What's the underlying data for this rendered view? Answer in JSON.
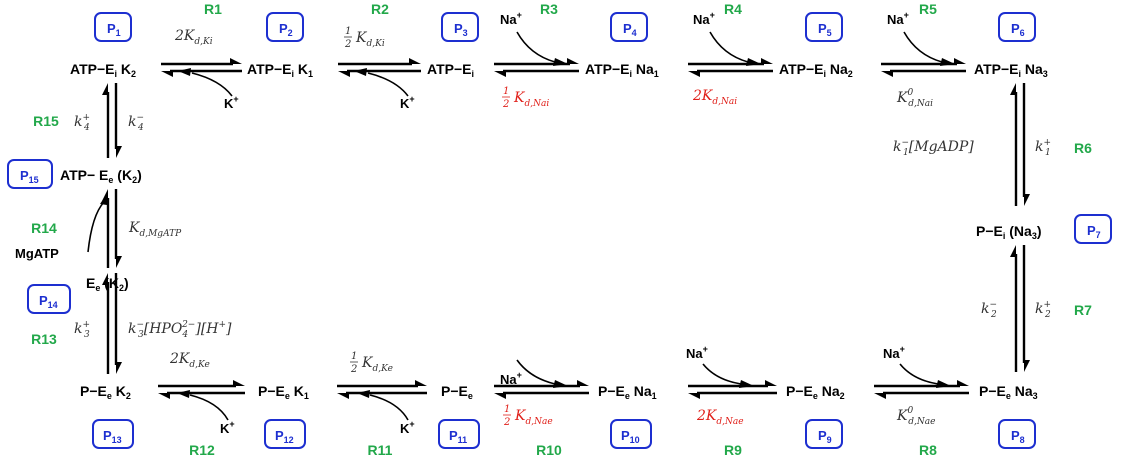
{
  "states": [
    {
      "id": "s1",
      "label": "ATP−E",
      "sub": "i",
      "tail": " K",
      "tailsub": "2"
    },
    {
      "id": "s2",
      "label": "ATP−E",
      "sub": "i",
      "tail": " K",
      "tailsub": "1"
    },
    {
      "id": "s3",
      "label": "ATP−E",
      "sub": "i",
      "tail": "",
      "tailsub": ""
    },
    {
      "id": "s4",
      "label": "ATP−E",
      "sub": "i",
      "tail": " Na",
      "tailsub": "1"
    },
    {
      "id": "s5",
      "label": "ATP−E",
      "sub": "i",
      "tail": " Na",
      "tailsub": "2"
    },
    {
      "id": "s6",
      "label": "ATP−E",
      "sub": "i",
      "tail": " Na",
      "tailsub": "3"
    },
    {
      "id": "s7",
      "label": "P−E",
      "sub": "i",
      "tail": " (Na",
      "tailsub": "3",
      "close": ")"
    },
    {
      "id": "s8",
      "label": "P−E",
      "sub": "e",
      "tail": " Na",
      "tailsub": "3"
    },
    {
      "id": "s9",
      "label": "P−E",
      "sub": "e",
      "tail": " Na",
      "tailsub": "2"
    },
    {
      "id": "s10",
      "label": "P−E",
      "sub": "e",
      "tail": " Na",
      "tailsub": "1"
    },
    {
      "id": "s11",
      "label": "P−E",
      "sub": "e",
      "tail": "",
      "tailsub": ""
    },
    {
      "id": "s12",
      "label": "P−E",
      "sub": "e",
      "tail": " K",
      "tailsub": "1"
    },
    {
      "id": "s13",
      "label": "P−E",
      "sub": "e",
      "tail": " K",
      "tailsub": "2"
    },
    {
      "id": "s14",
      "label": "E",
      "sub": "e",
      "tail": " (K",
      "tailsub": "2",
      "close": ")"
    },
    {
      "id": "s15",
      "label": "ATP− E",
      "sub": "e",
      "tail": " (K",
      "tailsub": "2",
      "close": ")"
    }
  ],
  "populations": [
    {
      "label": "P",
      "sub": "1"
    },
    {
      "label": "P",
      "sub": "2"
    },
    {
      "label": "P",
      "sub": "3"
    },
    {
      "label": "P",
      "sub": "4"
    },
    {
      "label": "P",
      "sub": "5"
    },
    {
      "label": "P",
      "sub": "6"
    },
    {
      "label": "P",
      "sub": "7"
    },
    {
      "label": "P",
      "sub": "8"
    },
    {
      "label": "P",
      "sub": "9"
    },
    {
      "label": "P",
      "sub": "10"
    },
    {
      "label": "P",
      "sub": "11"
    },
    {
      "label": "P",
      "sub": "12"
    },
    {
      "label": "P",
      "sub": "13"
    },
    {
      "label": "P",
      "sub": "14"
    },
    {
      "label": "P",
      "sub": "15"
    }
  ],
  "reactions": [
    "R1",
    "R2",
    "R3",
    "R4",
    "R5",
    "R6",
    "R7",
    "R8",
    "R9",
    "R10",
    "R11",
    "R12",
    "R13",
    "R14",
    "R15"
  ],
  "ions": {
    "na": "Na",
    "k": "K",
    "plus": "+",
    "mgatp": "MgATP"
  },
  "rates": {
    "r1": "2K",
    "r1s": "d,Ki",
    "r2f": "1",
    "r2d": "2",
    "r2": "K",
    "r2s": "d,Ki",
    "r3f": "1",
    "r3d": "2",
    "r3": "K",
    "r3s": "d,Nai",
    "r4": "2K",
    "r4s": "d,Nai",
    "r5": "K",
    "r5sup": "0",
    "r5s": "d,Nai",
    "r6l": "k",
    "r6lsup": "−",
    "r6lsub": "1",
    "r6lt": "[MgADP]",
    "r6r": "k",
    "r6rsup": "+",
    "r6rsub": "1",
    "r7l": "k",
    "r7lsup": "−",
    "r7lsub": "2",
    "r7r": "k",
    "r7rsup": "+",
    "r7rsub": "2",
    "r8": "K",
    "r8sup": "0",
    "r8s": "d,Nae",
    "r9": "2K",
    "r9s": "d,Nae",
    "r10f": "1",
    "r10d": "2",
    "r10": "K",
    "r10s": "d,Nae",
    "r11f": "1",
    "r11d": "2",
    "r11": "K",
    "r11s": "d,Ke",
    "r12": "2K",
    "r12s": "d,Ke",
    "r13l": "k",
    "r13lsup": "+",
    "r13lsub": "3",
    "r13r": "k",
    "r13rsup": "−",
    "r13rsub": "3",
    "r13rt1": "[HPO",
    "r13rsub2": "4",
    "r13rsup2": "2−",
    "r13rt2": "][H",
    "r13rsup3": "+",
    "r13rt3": "]",
    "r14": "K",
    "r14s": "d,MgATP",
    "r15l": "k",
    "r15lsup": "+",
    "r15lsub": "4",
    "r15r": "k",
    "r15rsup": "−",
    "r15rsub": "4"
  },
  "colors": {
    "reaction": "#22a84a",
    "population": "#1d2fd0",
    "highlight": "#e0201a",
    "text": "#000000"
  }
}
